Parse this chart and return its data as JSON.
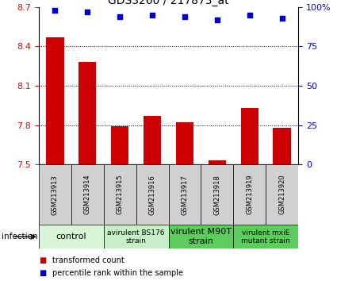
{
  "title": "GDS3260 / 217873_at",
  "samples": [
    "GSM213913",
    "GSM213914",
    "GSM213915",
    "GSM213916",
    "GSM213917",
    "GSM213918",
    "GSM213919",
    "GSM213920"
  ],
  "bar_values": [
    8.47,
    8.28,
    7.79,
    7.87,
    7.82,
    7.53,
    7.93,
    7.78
  ],
  "percentile_values": [
    98,
    97,
    94,
    95,
    94,
    92,
    95,
    93
  ],
  "ylim_left": [
    7.5,
    8.7
  ],
  "ylim_right": [
    0,
    100
  ],
  "yticks_left": [
    7.5,
    7.8,
    8.1,
    8.4,
    8.7
  ],
  "yticks_right": [
    0,
    25,
    50,
    75,
    100
  ],
  "bar_color": "#cc0000",
  "dot_color": "#0000cc",
  "groups": [
    {
      "label": "control",
      "start": 0,
      "end": 2,
      "color": "#d8f5d8",
      "fontsize": 8
    },
    {
      "label": "avirulent BS176\nstrain",
      "start": 2,
      "end": 4,
      "color": "#c8eec8",
      "fontsize": 6.5
    },
    {
      "label": "virulent M90T\nstrain",
      "start": 4,
      "end": 6,
      "color": "#5ccc5c",
      "fontsize": 8
    },
    {
      "label": "virulent mxiE\nmutant strain",
      "start": 6,
      "end": 8,
      "color": "#5ccc5c",
      "fontsize": 6.5
    }
  ],
  "sample_box_color": "#d0d0d0",
  "infection_label": "infection",
  "legend_bar_label": "transformed count",
  "legend_dot_label": "percentile rank within the sample",
  "grid_color": "#000000",
  "title_fontsize": 10,
  "tick_fontsize": 8,
  "sample_fontsize": 6
}
